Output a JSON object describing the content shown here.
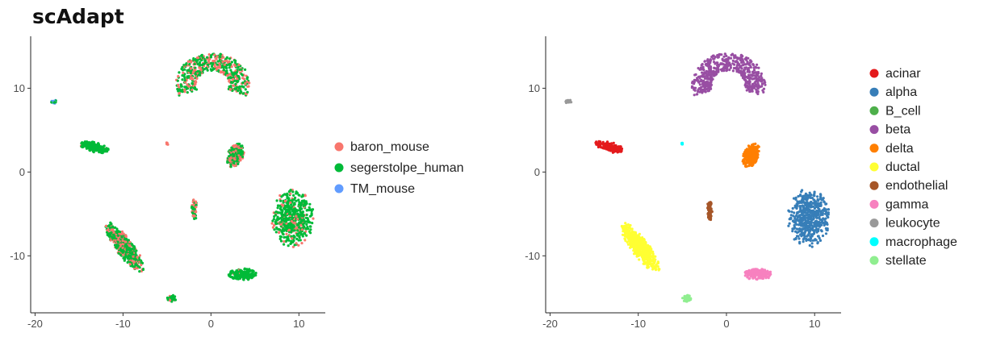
{
  "page": {
    "title": "scAdapt"
  },
  "chart_data": [
    {
      "type": "scatter",
      "title": "",
      "xlabel": "",
      "ylabel": "",
      "xlim": [
        -20.5,
        13
      ],
      "ylim": [
        -16.8,
        16.2
      ],
      "xticks": [
        -20,
        -10,
        0,
        10
      ],
      "yticks": [
        -10,
        0,
        10
      ],
      "grid": false,
      "legend_position": "right",
      "series": [
        {
          "name": "baron_mouse",
          "color": "#F8766D"
        },
        {
          "name": "segerstolpe_human",
          "color": "#00BA38"
        },
        {
          "name": "TM_mouse",
          "color": "#619CFF"
        }
      ],
      "clusters": [
        {
          "label": "beta",
          "shape": "arc",
          "cx": 0.2,
          "cy": 10.4,
          "r": 4.0,
          "thickness": 2.2,
          "mix": [
            0.35,
            0.65,
            0
          ]
        },
        {
          "label": "alpha",
          "cx": 9.3,
          "cy": -5.5,
          "rx": 2.4,
          "ry": 3.5,
          "mix": [
            0.15,
            0.85,
            0
          ]
        },
        {
          "label": "ductal",
          "cx": -9.8,
          "cy": -9.0,
          "rx": 1.0,
          "ry": 3.6,
          "rot": 35,
          "mix": [
            0.3,
            0.7,
            0
          ]
        },
        {
          "label": "acinar",
          "cx": -13.3,
          "cy": 3.0,
          "rx": 1.7,
          "ry": 0.6,
          "rot": -15,
          "mix": [
            0.03,
            0.97,
            0
          ]
        },
        {
          "label": "delta",
          "cx": 2.8,
          "cy": 2.0,
          "rx": 0.9,
          "ry": 1.5,
          "rot": -20,
          "mix": [
            0.4,
            0.6,
            0
          ]
        },
        {
          "label": "gamma",
          "cx": 3.6,
          "cy": -12.2,
          "rx": 1.6,
          "ry": 0.7,
          "mix": [
            0.02,
            0.98,
            0
          ]
        },
        {
          "label": "endothelial",
          "cx": -1.9,
          "cy": -4.5,
          "rx": 0.3,
          "ry": 1.3,
          "mix": [
            0.5,
            0.5,
            0
          ]
        },
        {
          "label": "stellate",
          "cx": -4.4,
          "cy": -15.1,
          "rx": 0.6,
          "ry": 0.4,
          "mix": [
            0.1,
            0.9,
            0
          ]
        },
        {
          "label": "leukocyte",
          "cx": -17.9,
          "cy": 8.4,
          "rx": 0.35,
          "ry": 0.25,
          "mix": [
            0.1,
            0.4,
            0.5
          ]
        },
        {
          "label": "macrophage",
          "cx": -5.0,
          "cy": 3.4,
          "rx": 0.15,
          "ry": 0.2,
          "mix": [
            1,
            0,
            0
          ]
        }
      ]
    },
    {
      "type": "scatter",
      "title": "",
      "xlabel": "",
      "ylabel": "",
      "xlim": [
        -20.5,
        13
      ],
      "ylim": [
        -16.8,
        16.2
      ],
      "xticks": [
        -20,
        -10,
        0,
        10
      ],
      "yticks": [
        -10,
        0,
        10
      ],
      "grid": false,
      "legend_position": "right",
      "series": [
        {
          "name": "acinar",
          "color": "#E41A1C"
        },
        {
          "name": "alpha",
          "color": "#377EB8"
        },
        {
          "name": "B_cell",
          "color": "#4DAF4A"
        },
        {
          "name": "beta",
          "color": "#984EA3"
        },
        {
          "name": "delta",
          "color": "#FF7F00"
        },
        {
          "name": "ductal",
          "color": "#FFFF33"
        },
        {
          "name": "endothelial",
          "color": "#A65628"
        },
        {
          "name": "gamma",
          "color": "#F781BF"
        },
        {
          "name": "leukocyte",
          "color": "#999999"
        },
        {
          "name": "macrophage",
          "color": "#00FFFF"
        },
        {
          "name": "stellate",
          "color": "#90EE90"
        }
      ],
      "clusters": [
        {
          "label": "beta",
          "shape": "arc",
          "cx": 0.2,
          "cy": 10.4,
          "r": 4.0,
          "thickness": 2.2
        },
        {
          "label": "alpha",
          "cx": 9.3,
          "cy": -5.5,
          "rx": 2.4,
          "ry": 3.5
        },
        {
          "label": "ductal",
          "cx": -9.8,
          "cy": -9.0,
          "rx": 1.0,
          "ry": 3.6,
          "rot": 35
        },
        {
          "label": "acinar",
          "cx": -13.3,
          "cy": 3.0,
          "rx": 1.7,
          "ry": 0.6,
          "rot": -15
        },
        {
          "label": "delta",
          "cx": 2.8,
          "cy": 2.0,
          "rx": 0.9,
          "ry": 1.5,
          "rot": -20
        },
        {
          "label": "gamma",
          "cx": 3.6,
          "cy": -12.2,
          "rx": 1.6,
          "ry": 0.7
        },
        {
          "label": "endothelial",
          "cx": -1.9,
          "cy": -4.5,
          "rx": 0.3,
          "ry": 1.3
        },
        {
          "label": "stellate",
          "cx": -4.4,
          "cy": -15.1,
          "rx": 0.6,
          "ry": 0.4
        },
        {
          "label": "leukocyte",
          "cx": -17.9,
          "cy": 8.4,
          "rx": 0.35,
          "ry": 0.25
        },
        {
          "label": "macrophage",
          "cx": -5.0,
          "cy": 3.4,
          "rx": 0.15,
          "ry": 0.2
        }
      ]
    }
  ]
}
